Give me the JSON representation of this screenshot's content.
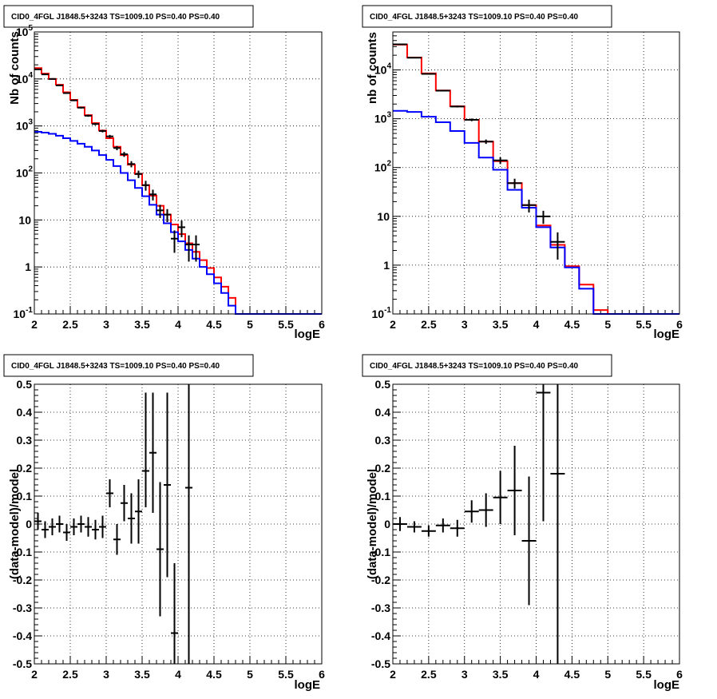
{
  "chart_data": [
    {
      "type": "line",
      "title": "CID0_4FGL J1848.5+3243 TS=1009.10 PS=0.40 PS=0.40",
      "xlabel": "logE",
      "ylabel": "Nb of counts",
      "log_y": true,
      "xlim": [
        2,
        6
      ],
      "ylim": [
        0.1,
        100000
      ],
      "grid": true,
      "x_ticks": [
        "2",
        "2.5",
        "3",
        "3.5",
        "4",
        "4.5",
        "5",
        "5.5",
        "6"
      ],
      "y_ticks": [
        "10^-1",
        "1",
        "10",
        "10^2",
        "10^3",
        "10^4",
        "10^5"
      ],
      "bin_edges": [
        2.0,
        2.1,
        2.2,
        2.3,
        2.4,
        2.5,
        2.6,
        2.7,
        2.8,
        2.9,
        3.0,
        3.1,
        3.2,
        3.3,
        3.4,
        3.5,
        3.6,
        3.7,
        3.8,
        3.9,
        4.0,
        4.1,
        4.2,
        4.3,
        4.4,
        4.5,
        4.6,
        4.7,
        4.8,
        4.9,
        5.0,
        5.1,
        5.2,
        5.3,
        5.4,
        5.5,
        5.6,
        5.7,
        5.8,
        5.9,
        6.0
      ],
      "series": [
        {
          "color": "#ff0000",
          "values": [
            17000,
            13000,
            10000,
            7500,
            5200,
            3600,
            2500,
            1700,
            1150,
            800,
            550,
            360,
            240,
            150,
            95,
            55,
            33,
            20,
            13,
            8,
            5,
            3.2,
            2.1,
            1.4,
            0.95,
            0.6,
            0.38,
            0.22,
            0.1,
            0.1,
            0.1,
            0.1,
            0.1,
            0.1,
            0.1,
            0.1,
            0.1,
            0.1,
            0.1,
            0.1
          ]
        },
        {
          "color": "#0000ff",
          "values": [
            750,
            720,
            680,
            620,
            550,
            480,
            420,
            360,
            300,
            240,
            190,
            140,
            100,
            70,
            48,
            32,
            21,
            13,
            8.5,
            5.5,
            3.5,
            2.3,
            1.5,
            1.0,
            0.7,
            0.45,
            0.28,
            0.15,
            0.1,
            0.1,
            0.1,
            0.1,
            0.1,
            0.1,
            0.1,
            0.1,
            0.1,
            0.1,
            0.1,
            0.1
          ]
        }
      ],
      "points": [
        {
          "x": 2.05,
          "y": 16000,
          "lo": 15700,
          "hi": 16300
        },
        {
          "x": 2.15,
          "y": 12500,
          "lo": 12300,
          "hi": 12700
        },
        {
          "x": 2.25,
          "y": 10000,
          "lo": 9800,
          "hi": 10200
        },
        {
          "x": 2.35,
          "y": 7300,
          "lo": 7150,
          "hi": 7450
        },
        {
          "x": 2.45,
          "y": 5000,
          "lo": 4850,
          "hi": 5150
        },
        {
          "x": 2.55,
          "y": 3500,
          "lo": 3380,
          "hi": 3620
        },
        {
          "x": 2.65,
          "y": 2450,
          "lo": 2350,
          "hi": 2550
        },
        {
          "x": 2.75,
          "y": 1650,
          "lo": 1570,
          "hi": 1730
        },
        {
          "x": 2.85,
          "y": 1100,
          "lo": 1040,
          "hi": 1160
        },
        {
          "x": 2.95,
          "y": 780,
          "lo": 730,
          "hi": 830
        },
        {
          "x": 3.05,
          "y": 600,
          "lo": 555,
          "hi": 645
        },
        {
          "x": 3.15,
          "y": 340,
          "lo": 305,
          "hi": 375
        },
        {
          "x": 3.25,
          "y": 250,
          "lo": 220,
          "hi": 280
        },
        {
          "x": 3.35,
          "y": 155,
          "lo": 132,
          "hi": 178
        },
        {
          "x": 3.45,
          "y": 95,
          "lo": 78,
          "hi": 112
        },
        {
          "x": 3.55,
          "y": 55,
          "lo": 42,
          "hi": 68
        },
        {
          "x": 3.65,
          "y": 35,
          "lo": 26,
          "hi": 44
        },
        {
          "x": 3.75,
          "y": 16,
          "lo": 11,
          "hi": 21
        },
        {
          "x": 3.85,
          "y": 13,
          "lo": 9,
          "hi": 17
        },
        {
          "x": 3.95,
          "y": 4,
          "lo": 2,
          "hi": 6
        },
        {
          "x": 4.05,
          "y": 7,
          "lo": 4.3,
          "hi": 9.7
        },
        {
          "x": 4.15,
          "y": 3,
          "lo": 1.3,
          "hi": 4.7
        },
        {
          "x": 4.25,
          "y": 3,
          "lo": 1.3,
          "hi": 4.7
        }
      ]
    },
    {
      "type": "line",
      "title": "CID0_4FGL J1848.5+3243 TS=1009.10 PS=0.40 PS=0.40",
      "xlabel": "logE",
      "ylabel": "nb of counts",
      "log_y": true,
      "xlim": [
        2,
        6
      ],
      "ylim": [
        0.1,
        60000
      ],
      "grid": true,
      "x_ticks": [
        "2",
        "2.5",
        "3",
        "3.5",
        "4",
        "4.5",
        "5",
        "5.5",
        "6"
      ],
      "y_ticks": [
        "10^-1",
        "1",
        "10",
        "10^2",
        "10^3",
        "10^4"
      ],
      "bin_edges": [
        2.0,
        2.2,
        2.4,
        2.6,
        2.8,
        3.0,
        3.2,
        3.4,
        3.6,
        3.8,
        4.0,
        4.2,
        4.4,
        4.6,
        4.8,
        5.0,
        5.2,
        5.4,
        5.6,
        5.8,
        6.0
      ],
      "series": [
        {
          "color": "#ff0000",
          "values": [
            33000,
            18000,
            8500,
            3800,
            1800,
            950,
            340,
            135,
            48,
            17,
            6.5,
            2.6,
            0.95,
            0.4,
            0.12,
            0.1,
            0.1,
            0.1,
            0.1,
            0.1
          ]
        },
        {
          "color": "#0000ff",
          "values": [
            1450,
            1380,
            1100,
            850,
            560,
            320,
            160,
            90,
            35,
            15,
            6,
            2.3,
            0.9,
            0.33,
            0.1,
            0.1,
            0.1,
            0.1,
            0.1,
            0.1
          ]
        }
      ],
      "points": [
        {
          "x": 2.1,
          "y": 33500,
          "lo": 33200,
          "hi": 33800
        },
        {
          "x": 2.3,
          "y": 17800,
          "lo": 17550,
          "hi": 18050
        },
        {
          "x": 2.5,
          "y": 8300,
          "lo": 8120,
          "hi": 8480
        },
        {
          "x": 2.7,
          "y": 3750,
          "lo": 3630,
          "hi": 3870
        },
        {
          "x": 2.9,
          "y": 1780,
          "lo": 1700,
          "hi": 1860
        },
        {
          "x": 3.1,
          "y": 950,
          "lo": 890,
          "hi": 1010
        },
        {
          "x": 3.3,
          "y": 340,
          "lo": 305,
          "hi": 375
        },
        {
          "x": 3.5,
          "y": 140,
          "lo": 118,
          "hi": 162
        },
        {
          "x": 3.7,
          "y": 48,
          "lo": 37,
          "hi": 59
        },
        {
          "x": 3.9,
          "y": 17,
          "lo": 12,
          "hi": 22
        },
        {
          "x": 4.1,
          "y": 10,
          "lo": 7,
          "hi": 13
        },
        {
          "x": 4.3,
          "y": 3,
          "lo": 1.3,
          "hi": 4.7
        }
      ]
    },
    {
      "type": "scatter",
      "title": "CID0_4FGL J1848.5+3243 TS=1009.10 PS=0.40 PS=0.40",
      "xlabel": "logE",
      "ylabel": "(data-model)/model",
      "xlim": [
        2,
        6
      ],
      "ylim": [
        -0.5,
        0.5
      ],
      "grid": true,
      "x_ticks": [
        "2",
        "2.5",
        "3",
        "3.5",
        "4",
        "4.5",
        "5",
        "5.5",
        "6"
      ],
      "y_ticks": [
        "-0.5",
        "-0.4",
        "-0.3",
        "-0.2",
        "-0.1",
        "0",
        "0.1",
        "0.2",
        "0.3",
        "0.4",
        "0.5"
      ],
      "half_width": 0.05,
      "points": [
        {
          "x": 2.05,
          "y": 0.01,
          "lo": -0.02,
          "hi": 0.04
        },
        {
          "x": 2.15,
          "y": -0.02,
          "lo": -0.05,
          "hi": 0.01
        },
        {
          "x": 2.25,
          "y": -0.01,
          "lo": -0.04,
          "hi": 0.02
        },
        {
          "x": 2.35,
          "y": 0.0,
          "lo": -0.03,
          "hi": 0.03
        },
        {
          "x": 2.45,
          "y": -0.03,
          "lo": -0.06,
          "hi": 0.0
        },
        {
          "x": 2.55,
          "y": -0.01,
          "lo": -0.04,
          "hi": 0.02
        },
        {
          "x": 2.65,
          "y": 0.0,
          "lo": -0.03,
          "hi": 0.03
        },
        {
          "x": 2.75,
          "y": -0.01,
          "lo": -0.045,
          "hi": 0.025
        },
        {
          "x": 2.85,
          "y": -0.02,
          "lo": -0.055,
          "hi": 0.015
        },
        {
          "x": 2.95,
          "y": -0.01,
          "lo": -0.05,
          "hi": 0.03
        },
        {
          "x": 3.05,
          "y": 0.11,
          "lo": 0.06,
          "hi": 0.16
        },
        {
          "x": 3.15,
          "y": -0.055,
          "lo": -0.11,
          "hi": 0.0
        },
        {
          "x": 3.25,
          "y": 0.075,
          "lo": 0.01,
          "hi": 0.14
        },
        {
          "x": 3.35,
          "y": 0.02,
          "lo": -0.07,
          "hi": 0.11
        },
        {
          "x": 3.45,
          "y": 0.045,
          "lo": -0.07,
          "hi": 0.16
        },
        {
          "x": 3.55,
          "y": 0.19,
          "lo": 0.06,
          "hi": 0.47
        },
        {
          "x": 3.65,
          "y": 0.255,
          "lo": 0.04,
          "hi": 0.47
        },
        {
          "x": 3.75,
          "y": -0.09,
          "lo": -0.33,
          "hi": 0.15
        },
        {
          "x": 3.85,
          "y": 0.14,
          "lo": -0.19,
          "hi": 0.47
        },
        {
          "x": 3.95,
          "y": -0.39,
          "lo": -0.5,
          "hi": -0.14
        },
        {
          "x": 4.15,
          "y": 0.13,
          "lo": -0.5,
          "hi": 0.5
        }
      ]
    },
    {
      "type": "scatter",
      "title": "CID0_4FGL J1848.5+3243 TS=1009.10 PS=0.40 PS=0.40",
      "xlabel": "logE",
      "ylabel": "(data-model)/model",
      "xlim": [
        2,
        6
      ],
      "ylim": [
        -0.5,
        0.5
      ],
      "grid": true,
      "x_ticks": [
        "2",
        "2.5",
        "3",
        "3.5",
        "4",
        "4.5",
        "5",
        "5.5",
        "6"
      ],
      "y_ticks": [
        "-0.5",
        "-0.4",
        "-0.3",
        "-0.2",
        "-0.1",
        "0",
        "0.1",
        "0.2",
        "0.3",
        "0.4",
        "0.5"
      ],
      "half_width": 0.1,
      "points": [
        {
          "x": 2.1,
          "y": 0.0,
          "lo": -0.025,
          "hi": 0.025
        },
        {
          "x": 2.3,
          "y": -0.01,
          "lo": -0.03,
          "hi": 0.01
        },
        {
          "x": 2.5,
          "y": -0.025,
          "lo": -0.045,
          "hi": -0.005
        },
        {
          "x": 2.7,
          "y": -0.005,
          "lo": -0.03,
          "hi": 0.02
        },
        {
          "x": 2.9,
          "y": -0.015,
          "lo": -0.045,
          "hi": 0.015
        },
        {
          "x": 3.1,
          "y": 0.045,
          "lo": 0.005,
          "hi": 0.085
        },
        {
          "x": 3.3,
          "y": 0.05,
          "lo": -0.01,
          "hi": 0.11
        },
        {
          "x": 3.5,
          "y": 0.095,
          "lo": 0.0,
          "hi": 0.19
        },
        {
          "x": 3.7,
          "y": 0.12,
          "lo": -0.04,
          "hi": 0.28
        },
        {
          "x": 3.9,
          "y": -0.06,
          "lo": -0.29,
          "hi": 0.17
        },
        {
          "x": 4.1,
          "y": 0.47,
          "lo": 0.01,
          "hi": 0.5
        },
        {
          "x": 4.3,
          "y": 0.18,
          "lo": -0.5,
          "hi": 0.5
        }
      ]
    }
  ]
}
